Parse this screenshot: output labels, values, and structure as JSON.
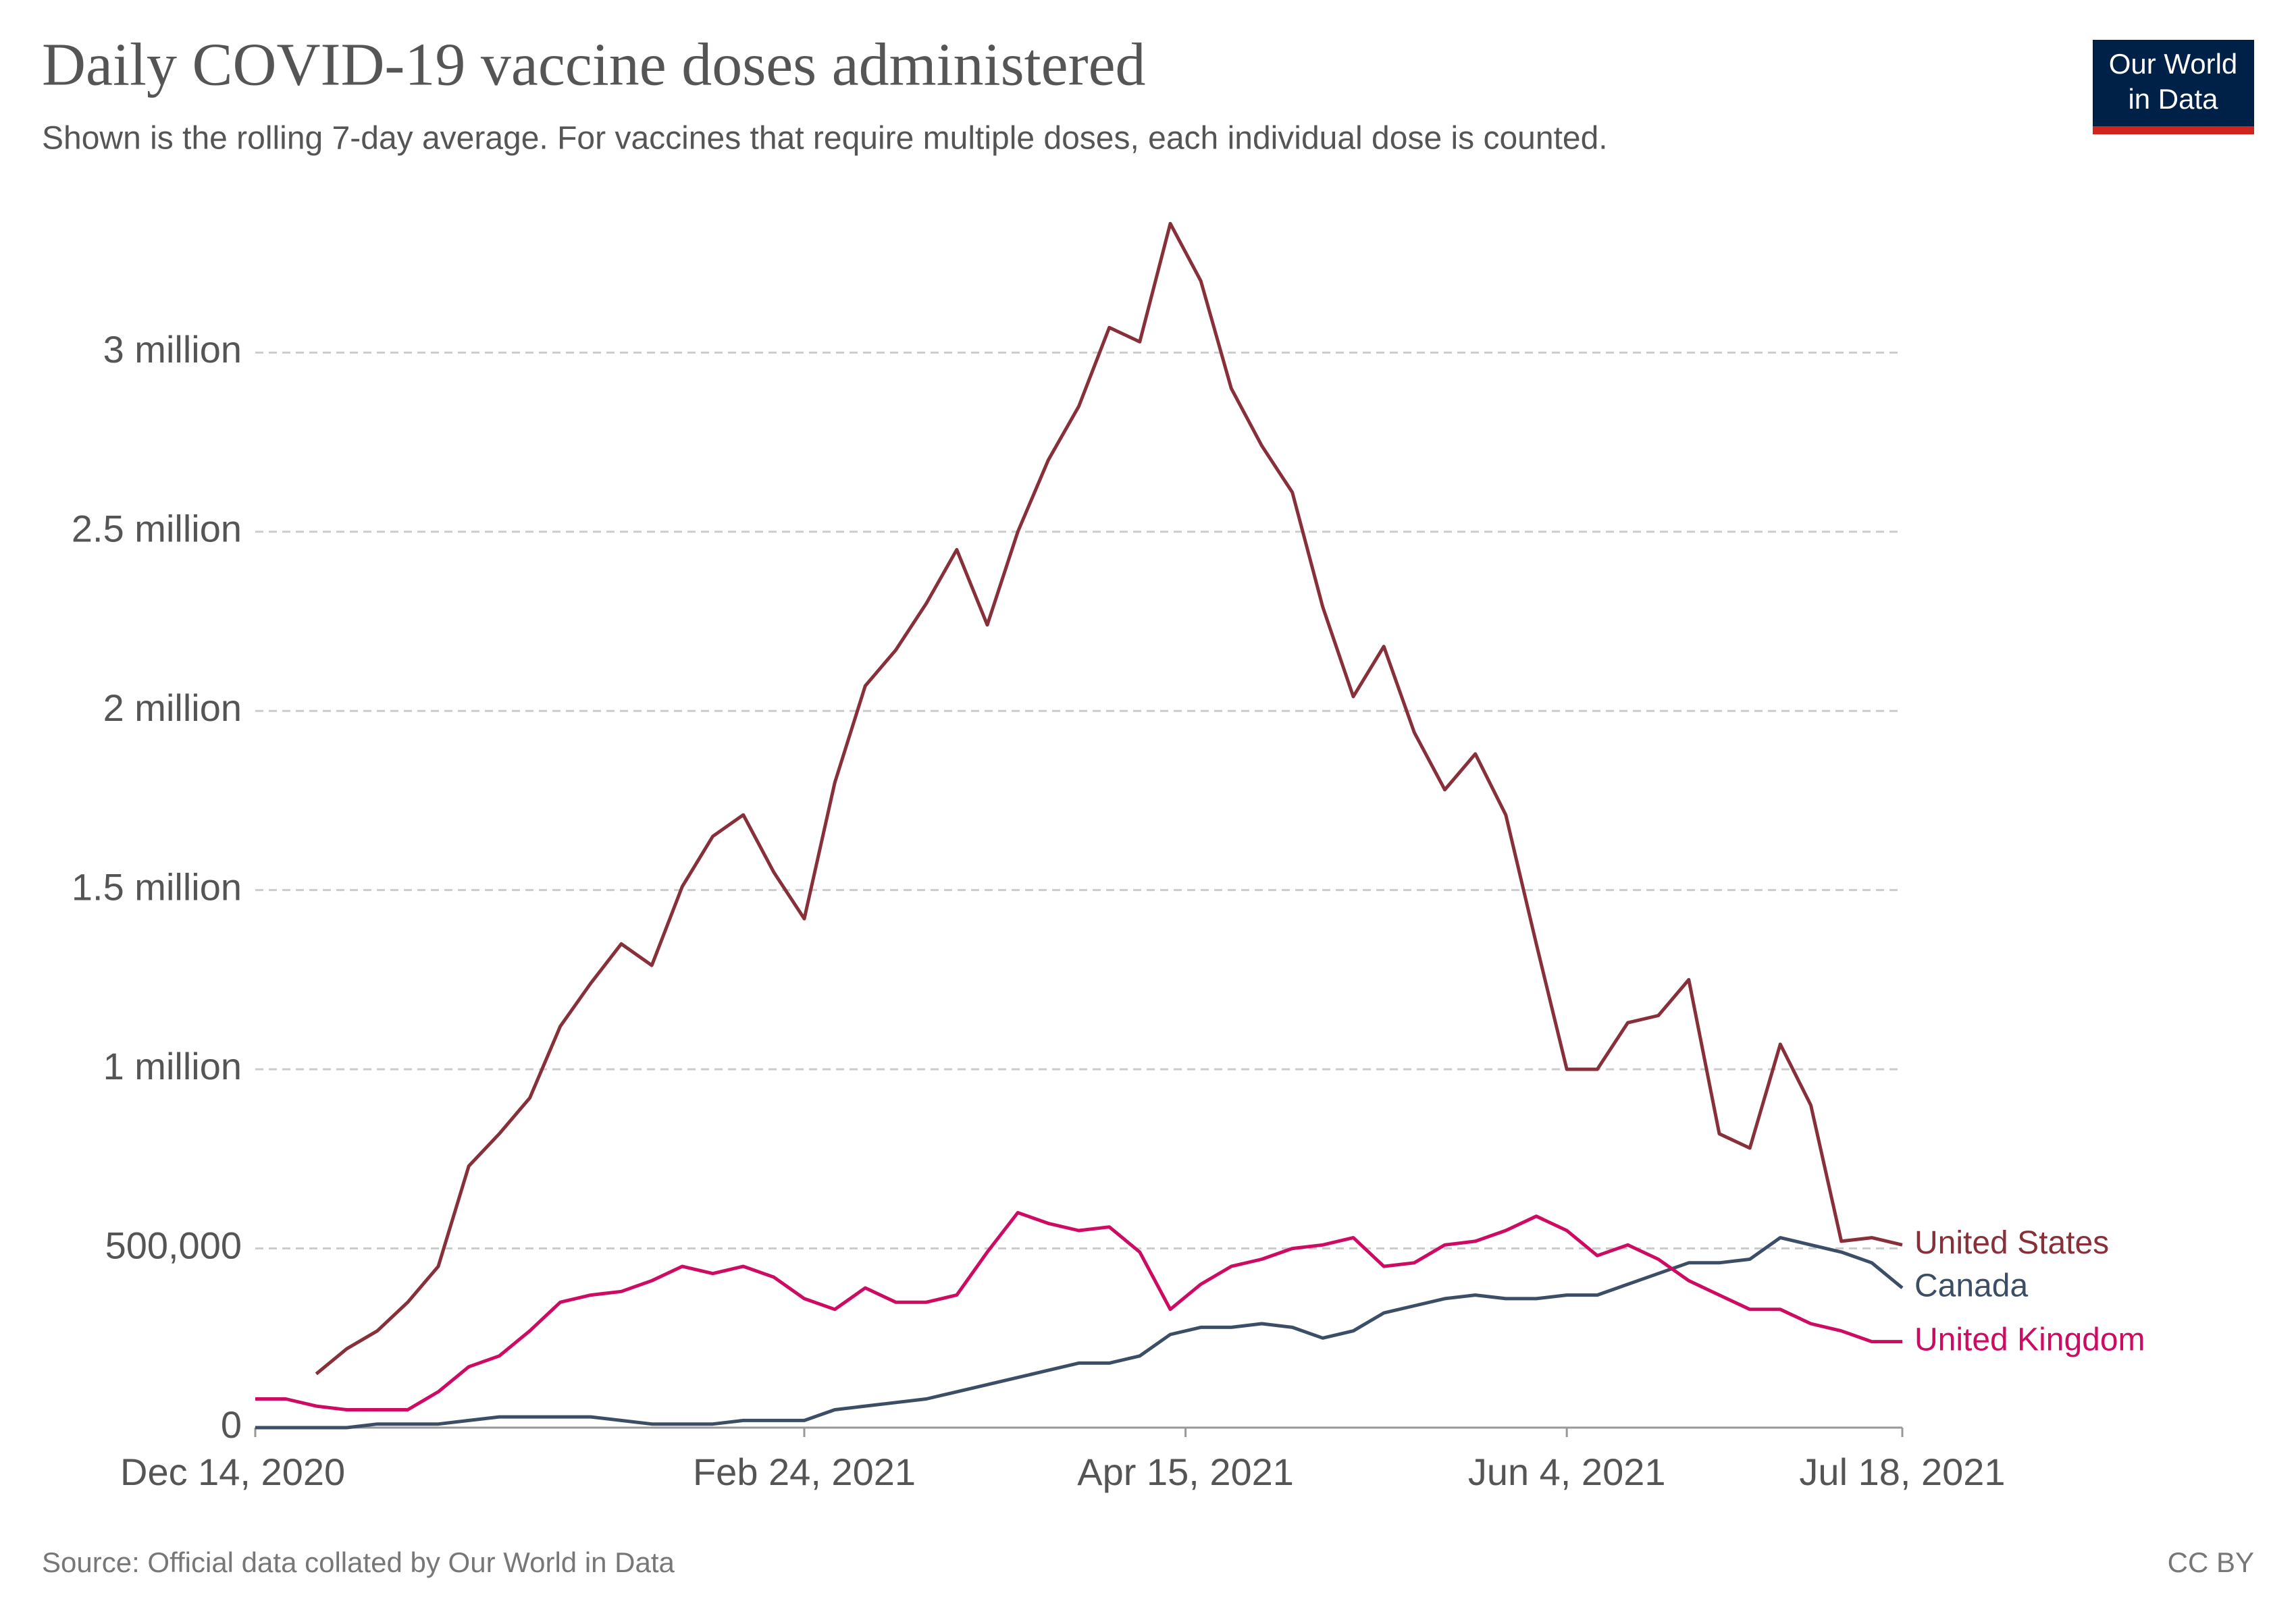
{
  "chart_data": {
    "type": "line",
    "title": "Daily COVID-19 vaccine doses administered",
    "subtitle": "Shown is the rolling 7-day average. For vaccines that require multiple doses, each individual dose is counted.",
    "source": "Source: Official data collated by Our World in Data",
    "license": "CC BY",
    "logo": [
      "Our World",
      "in Data"
    ],
    "x": [
      "2020-12-14",
      "2020-12-18",
      "2020-12-22",
      "2020-12-26",
      "2020-12-30",
      "2021-01-03",
      "2021-01-07",
      "2021-01-11",
      "2021-01-15",
      "2021-01-19",
      "2021-01-23",
      "2021-01-27",
      "2021-01-31",
      "2021-02-04",
      "2021-02-08",
      "2021-02-12",
      "2021-02-16",
      "2021-02-20",
      "2021-02-24",
      "2021-02-28",
      "2021-03-04",
      "2021-03-08",
      "2021-03-12",
      "2021-03-16",
      "2021-03-20",
      "2021-03-24",
      "2021-03-28",
      "2021-04-01",
      "2021-04-05",
      "2021-04-09",
      "2021-04-13",
      "2021-04-17",
      "2021-04-21",
      "2021-04-25",
      "2021-04-29",
      "2021-05-03",
      "2021-05-07",
      "2021-05-11",
      "2021-05-15",
      "2021-05-19",
      "2021-05-23",
      "2021-05-27",
      "2021-05-31",
      "2021-06-04",
      "2021-06-08",
      "2021-06-12",
      "2021-06-16",
      "2021-06-20",
      "2021-06-24",
      "2021-06-28",
      "2021-07-02",
      "2021-07-06",
      "2021-07-10",
      "2021-07-14",
      "2021-07-18"
    ],
    "series": [
      {
        "name": "United States",
        "color": "#883039",
        "values": [
          null,
          null,
          150000,
          220000,
          270000,
          350000,
          450000,
          730000,
          820000,
          920000,
          1120000,
          1240000,
          1350000,
          1290000,
          1510000,
          1650000,
          1710000,
          1550000,
          1420000,
          1800000,
          2070000,
          2170000,
          2300000,
          2450000,
          2240000,
          2500000,
          2700000,
          2850000,
          3070000,
          3030000,
          3360000,
          3200000,
          2900000,
          2740000,
          2610000,
          2290000,
          2040000,
          2180000,
          1940000,
          1780000,
          1880000,
          1710000,
          1350000,
          1000000,
          1000000,
          1130000,
          1150000,
          1250000,
          820000,
          780000,
          1070000,
          900000,
          520000,
          530000,
          510000
        ]
      },
      {
        "name": "Canada",
        "color": "#3c4e66",
        "values": [
          0,
          0,
          0,
          0,
          10000,
          10000,
          10000,
          20000,
          30000,
          30000,
          30000,
          30000,
          20000,
          10000,
          10000,
          10000,
          20000,
          20000,
          20000,
          50000,
          60000,
          70000,
          80000,
          100000,
          120000,
          140000,
          160000,
          180000,
          180000,
          200000,
          260000,
          280000,
          280000,
          290000,
          280000,
          250000,
          270000,
          320000,
          340000,
          360000,
          370000,
          360000,
          360000,
          370000,
          370000,
          400000,
          430000,
          460000,
          460000,
          470000,
          530000,
          510000,
          490000,
          460000,
          390000
        ]
      },
      {
        "name": "United Kingdom",
        "color": "#ce0b62",
        "values": [
          80000,
          80000,
          60000,
          50000,
          50000,
          50000,
          100000,
          170000,
          200000,
          270000,
          350000,
          370000,
          380000,
          410000,
          450000,
          430000,
          450000,
          420000,
          360000,
          330000,
          390000,
          350000,
          350000,
          370000,
          490000,
          600000,
          570000,
          550000,
          560000,
          490000,
          330000,
          400000,
          450000,
          470000,
          500000,
          510000,
          530000,
          450000,
          460000,
          510000,
          520000,
          550000,
          590000,
          550000,
          480000,
          510000,
          470000,
          410000,
          370000,
          330000,
          330000,
          290000,
          270000,
          240000,
          240000
        ]
      }
    ],
    "xlim": [
      "2020-12-14",
      "2021-07-18"
    ],
    "xticks": [
      {
        "value": "2020-12-14",
        "label": "Dec 14, 2020"
      },
      {
        "value": "2021-02-24",
        "label": "Feb 24, 2021"
      },
      {
        "value": "2021-04-15",
        "label": "Apr 15, 2021"
      },
      {
        "value": "2021-06-04",
        "label": "Jun 4, 2021"
      },
      {
        "value": "2021-07-18",
        "label": "Jul 18, 2021"
      }
    ],
    "ylim": [
      0,
      3400000
    ],
    "yticks": [
      0,
      {
        "value": 500000,
        "label": "500,000"
      },
      {
        "value": 1000000,
        "label": "1 million"
      },
      {
        "value": 1500000,
        "label": "1.5 million"
      },
      {
        "value": 2000000,
        "label": "2 million"
      },
      {
        "value": 2500000,
        "label": "2.5 million"
      },
      {
        "value": 3000000,
        "label": "3 million"
      }
    ],
    "grid": true
  }
}
